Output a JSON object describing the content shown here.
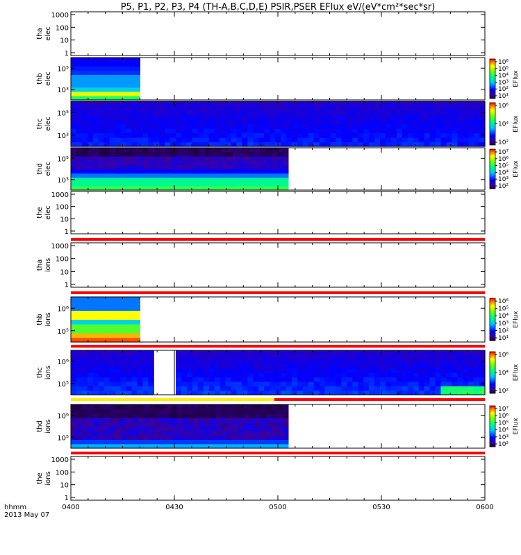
{
  "title": "P5, P1, P2, P3, P4 (TH-A,B,C,D,E) PSIR,PSER EFlux eV/(eV*cm²*sec*sr)",
  "chart_data": {
    "type": "heatmap",
    "title": "P5, P1, P2, P3, P4 (TH-A,B,C,D,E) PSIR,PSER EFlux eV/(eV*cm²*sec*sr)",
    "x_axis": {
      "ticks": [
        "0400",
        "0430",
        "0500",
        "0530",
        "0600"
      ],
      "corner_label": "hhmm",
      "date_label": "2013 May 07"
    },
    "colorbar_label": "EFlux",
    "panels": [
      {
        "id": "tha-elec",
        "label1": "tha",
        "label2": "elec",
        "status": "no-data",
        "yticks": [
          "1000",
          "100",
          "10",
          "1"
        ],
        "bar": null,
        "colorbar": null
      },
      {
        "id": "thb-elec",
        "label1": "thb",
        "label2": "elec",
        "status": "data",
        "yticks": [
          "10⁵",
          "10³"
        ],
        "data_until": "0420",
        "bar": null,
        "colorbar": [
          "10⁶",
          "10⁵",
          "10⁴",
          "10³",
          "10²",
          "10¹"
        ]
      },
      {
        "id": "thc-elec",
        "label1": "thc",
        "label2": "elec",
        "status": "data",
        "yticks": [
          "10⁵",
          "10³"
        ],
        "data_until": "0600",
        "bar": null,
        "colorbar": [
          "10⁶",
          "10⁴",
          "10²"
        ]
      },
      {
        "id": "thd-elec",
        "label1": "thd",
        "label2": "elec",
        "status": "data",
        "yticks": [
          "10⁵",
          "10³"
        ],
        "data_until": "0503",
        "bar": null,
        "colorbar": [
          "10⁷",
          "10⁶",
          "10⁵",
          "10⁴",
          "10³",
          "10²"
        ]
      },
      {
        "id": "the-elec",
        "label1": "the",
        "label2": "elec",
        "status": "no-data",
        "yticks": [
          "1000",
          "100",
          "10",
          "1"
        ],
        "bar": "red",
        "colorbar": null
      },
      {
        "id": "tha-ions",
        "label1": "tha",
        "label2": "ions",
        "status": "no-data",
        "yticks": [
          "1000",
          "100",
          "10",
          "1"
        ],
        "bar": "red",
        "colorbar": null
      },
      {
        "id": "thb-ions",
        "label1": "thb",
        "label2": "ions",
        "status": "data",
        "yticks": [
          "10⁶",
          "10⁵"
        ],
        "data_until": "0420",
        "bar": "red",
        "colorbar": [
          "10⁶",
          "10⁵",
          "10⁴",
          "10³",
          "10²",
          "10¹"
        ]
      },
      {
        "id": "thc-ions",
        "label1": "thc",
        "label2": "ions",
        "status": "data",
        "yticks": [
          "10⁶",
          "10⁵"
        ],
        "data_until": "0600",
        "gap": [
          "0424",
          "0430"
        ],
        "bar": "yellow-red",
        "colorbar": [
          "10⁶",
          "10⁴",
          "10²"
        ]
      },
      {
        "id": "thd-ions",
        "label1": "thd",
        "label2": "ions",
        "status": "data",
        "yticks": [
          "10⁶",
          "10⁵"
        ],
        "data_until": "0503",
        "bar": "red",
        "colorbar": [
          "10⁷",
          "10⁶",
          "10⁵",
          "10⁴",
          "10³",
          "10²"
        ]
      },
      {
        "id": "the-ions",
        "label1": "the",
        "label2": "ions",
        "status": "no-data",
        "yticks": [
          "1000",
          "100",
          "10",
          "1"
        ],
        "bar": null,
        "colorbar": null
      }
    ]
  }
}
